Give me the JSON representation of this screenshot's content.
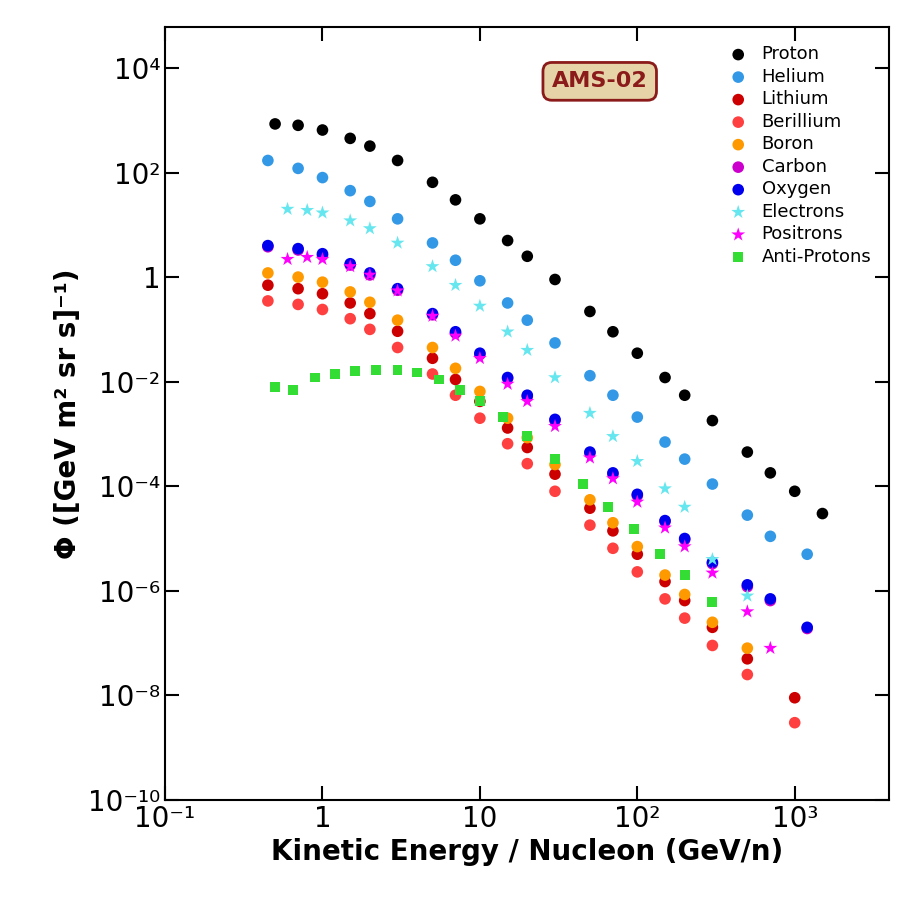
{
  "chart_data": {
    "type": "scatter",
    "x_label": "Kinetic Energy / Nucleon (GeV/n)",
    "y_label": "Φ ([GeV m² sr s]⁻¹)",
    "annotation": "AMS-02",
    "log": true,
    "legend": "upper right",
    "xlim": [
      0.1,
      4000
    ],
    "ylim": [
      1e-10,
      60000
    ],
    "xticks": [
      {
        "value": 0.1,
        "label": "10⁻¹"
      },
      1,
      10,
      {
        "value": 100,
        "label": "10²"
      },
      {
        "value": 1000,
        "label": "10³"
      }
    ],
    "yticks": [
      {
        "value": 1e-10,
        "label": "10⁻¹⁰"
      },
      {
        "value": 1e-08,
        "label": "10⁻⁸"
      },
      {
        "value": 1e-06,
        "label": "10⁻⁶"
      },
      {
        "value": 0.0001,
        "label": "10⁻⁴"
      },
      {
        "value": 0.01,
        "label": "10⁻²"
      },
      1,
      {
        "value": 100,
        "label": "10²"
      },
      {
        "value": 10000,
        "label": "10⁴"
      }
    ],
    "series": [
      {
        "name": "Proton",
        "color": "#000000",
        "marker": "circle",
        "x": [
          0.5,
          0.7,
          1,
          1.5,
          2,
          3,
          5,
          7,
          10,
          15,
          20,
          30,
          50,
          70,
          100,
          150,
          200,
          300,
          500,
          700,
          1000,
          1500
        ],
        "values": [
          850,
          800,
          650,
          450,
          320,
          170,
          65,
          30,
          13,
          5,
          2.5,
          0.9,
          0.22,
          0.09,
          0.035,
          0.012,
          0.0055,
          0.0018,
          0.00045,
          0.00018,
          8e-05,
          3e-05
        ]
      },
      {
        "name": "Helium",
        "color": "#3399e6",
        "marker": "circle",
        "x": [
          0.45,
          0.7,
          1,
          1.5,
          2,
          3,
          5,
          7,
          10,
          15,
          20,
          30,
          50,
          70,
          100,
          150,
          200,
          300,
          500,
          700,
          1200
        ],
        "values": [
          170,
          120,
          80,
          45,
          28,
          13,
          4.5,
          2.1,
          0.85,
          0.32,
          0.15,
          0.055,
          0.013,
          0.0055,
          0.0021,
          0.0007,
          0.00033,
          0.00011,
          2.8e-05,
          1.1e-05,
          5e-06
        ]
      },
      {
        "name": "Lithium",
        "color": "#cc0000",
        "marker": "circle",
        "x": [
          0.45,
          0.7,
          1,
          1.5,
          2,
          3,
          5,
          7,
          10,
          15,
          20,
          30,
          50,
          70,
          100,
          150,
          200,
          300,
          500,
          1000
        ],
        "values": [
          0.7,
          0.6,
          0.48,
          0.32,
          0.2,
          0.092,
          0.028,
          0.011,
          0.0042,
          0.0013,
          0.00055,
          0.00017,
          3.8e-05,
          1.4e-05,
          5e-06,
          1.5e-06,
          6.5e-07,
          2e-07,
          5e-08,
          9e-09
        ]
      },
      {
        "name": "Berillium",
        "color": "#ff4040",
        "marker": "circle",
        "x": [
          0.45,
          0.7,
          1,
          1.5,
          2,
          3,
          5,
          7,
          10,
          15,
          20,
          30,
          50,
          70,
          100,
          150,
          200,
          300,
          500,
          1000
        ],
        "values": [
          0.35,
          0.3,
          0.24,
          0.16,
          0.1,
          0.045,
          0.014,
          0.0055,
          0.002,
          0.00065,
          0.00027,
          8e-05,
          1.8e-05,
          6.5e-06,
          2.3e-06,
          7e-07,
          3e-07,
          9e-08,
          2.5e-08,
          3e-09
        ]
      },
      {
        "name": "Boron",
        "color": "#ff9900",
        "marker": "circle",
        "x": [
          0.45,
          0.7,
          1,
          1.5,
          2,
          3,
          5,
          7,
          10,
          15,
          20,
          30,
          50,
          70,
          100,
          150,
          200,
          300,
          500
        ],
        "values": [
          1.2,
          1.0,
          0.8,
          0.52,
          0.33,
          0.15,
          0.045,
          0.018,
          0.0065,
          0.002,
          0.00085,
          0.00026,
          5.5e-05,
          2e-05,
          7e-06,
          2e-06,
          8.5e-07,
          2.5e-07,
          8e-08
        ]
      },
      {
        "name": "Carbon",
        "color": "#cc00cc",
        "marker": "circle",
        "x": [
          0.45,
          0.7,
          1,
          1.5,
          2,
          3,
          5,
          7,
          10,
          15,
          20,
          30,
          50,
          70,
          100,
          150,
          200,
          300,
          500,
          700,
          1200
        ],
        "values": [
          3.8,
          3.3,
          2.6,
          1.7,
          1.1,
          0.56,
          0.19,
          0.085,
          0.033,
          0.0115,
          0.0052,
          0.0018,
          0.00043,
          0.00017,
          6.6e-05,
          2.1e-05,
          9.5e-06,
          3.3e-06,
          1.2e-06,
          6.5e-07,
          1.9e-07
        ]
      },
      {
        "name": "Oxygen",
        "color": "#0000ee",
        "marker": "circle",
        "x": [
          0.45,
          0.7,
          1,
          1.5,
          2,
          3,
          5,
          7,
          10,
          15,
          20,
          30,
          50,
          70,
          100,
          150,
          200,
          300,
          500,
          700,
          1200
        ],
        "values": [
          4,
          3.5,
          2.8,
          1.8,
          1.2,
          0.6,
          0.2,
          0.09,
          0.035,
          0.012,
          0.0055,
          0.0019,
          0.00045,
          0.00018,
          7e-05,
          2.2e-05,
          1e-05,
          3.5e-06,
          1.3e-06,
          7e-07,
          2e-07
        ]
      },
      {
        "name": "Electrons",
        "color": "#66e6ee",
        "marker": "star",
        "x": [
          0.6,
          0.8,
          1,
          1.5,
          2,
          3,
          5,
          7,
          10,
          15,
          20,
          30,
          50,
          70,
          100,
          150,
          200,
          300,
          500
        ],
        "values": [
          20,
          19,
          17,
          12,
          8.5,
          4.5,
          1.6,
          0.7,
          0.28,
          0.09,
          0.04,
          0.012,
          0.0025,
          0.0009,
          0.0003,
          9e-05,
          4e-05,
          4e-06,
          8e-07
        ]
      },
      {
        "name": "Positrons",
        "color": "#ff00ff",
        "marker": "star",
        "x": [
          0.6,
          0.8,
          1,
          1.5,
          2,
          3,
          5,
          7,
          10,
          15,
          20,
          30,
          50,
          70,
          100,
          150,
          200,
          300,
          500,
          700
        ],
        "values": [
          2.2,
          2.4,
          2.2,
          1.6,
          1.1,
          0.55,
          0.18,
          0.075,
          0.028,
          0.009,
          0.0042,
          0.0014,
          0.00035,
          0.00014,
          5e-05,
          1.6e-05,
          7e-06,
          2.2e-06,
          4e-07,
          8e-08
        ]
      },
      {
        "name": "Anti-Protons",
        "color": "#33dd33",
        "marker": "square",
        "x": [
          0.5,
          0.65,
          0.9,
          1.2,
          1.6,
          2.2,
          3,
          4,
          5.5,
          7.5,
          10,
          14,
          20,
          30,
          45,
          65,
          95,
          140,
          200,
          300
        ],
        "values": [
          0.008,
          0.007,
          0.012,
          0.014,
          0.016,
          0.017,
          0.017,
          0.015,
          0.011,
          0.007,
          0.0042,
          0.0021,
          0.0009,
          0.00033,
          0.00011,
          4e-05,
          1.5e-05,
          5e-06,
          2e-06,
          6e-07
        ]
      }
    ]
  }
}
